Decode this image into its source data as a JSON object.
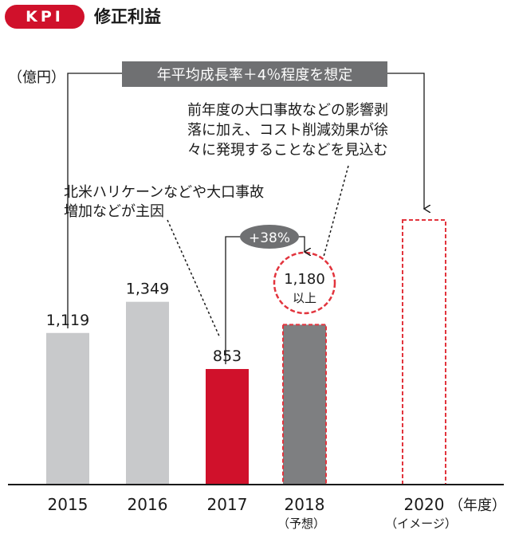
{
  "header": {
    "badge": "KPI",
    "title": "修正利益"
  },
  "chart_data": {
    "type": "bar",
    "title": "修正利益",
    "ylabel": "（億円）",
    "xlabel": "（年度）",
    "ylim": [
      0,
      1600
    ],
    "grid": false,
    "categories": [
      "2015",
      "2016",
      "2017",
      "2018",
      "2020"
    ],
    "category_sublabels": [
      "",
      "",
      "",
      "（予想）",
      "（イメージ）"
    ],
    "values": [
      1119,
      1349,
      853,
      1180,
      null
    ],
    "data_labels": [
      "1,119",
      "1,349",
      "853",
      "1,180",
      ""
    ],
    "data_label_suffix_2018": "以上",
    "bar_styles": [
      "actual",
      "actual",
      "highlight",
      "forecast",
      "image"
    ],
    "colors": {
      "actual": "#c8c9cb",
      "highlight": "#d0112b",
      "forecast": "#7e7f81",
      "dashed": "#e2343d",
      "callout_bg": "#6f7072",
      "axis": "#1a1a1a"
    },
    "annotations": {
      "target": "年平均成長率＋4％程度を想定",
      "growth": "+38%",
      "cause_2017": [
        "北米ハリケーンなどや大口事故",
        "増加などが主因"
      ],
      "forecast_2018": [
        "前年度の大口事故などの影響剥",
        "落に加え、コスト削減効果が徐",
        "々に発現することなどを見込む"
      ]
    }
  }
}
